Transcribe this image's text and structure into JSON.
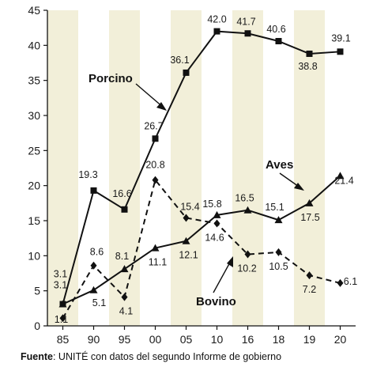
{
  "chart_data": {
    "type": "line",
    "categories": [
      "85",
      "90",
      "95",
      "00",
      "05",
      "10",
      "16",
      "18",
      "19",
      "20"
    ],
    "ylim": [
      0,
      45
    ],
    "yticks": [
      0,
      5,
      10,
      15,
      20,
      25,
      30,
      35,
      40,
      45
    ],
    "grid": "vertical bands",
    "series": [
      {
        "name": "Porcino",
        "values": [
          3.1,
          19.3,
          16.6,
          26.7,
          36.1,
          42.0,
          41.7,
          40.6,
          38.8,
          39.1
        ],
        "labels": [
          "3.1",
          "19.3",
          "16.6",
          "26.7",
          "36.1",
          "42.0",
          "41.7",
          "40.6",
          "38.8",
          "39.1"
        ],
        "color": "#111111",
        "line_style": "solid",
        "marker": "square"
      },
      {
        "name": "Aves",
        "values": [
          3.1,
          5.1,
          8.1,
          11.1,
          12.1,
          15.8,
          16.5,
          15.1,
          17.5,
          21.4
        ],
        "labels": [
          "3.1",
          "5.1",
          "8.1",
          "11.1",
          "12.1",
          "15.8",
          "16.5",
          "15.1",
          "17.5",
          "21.4"
        ],
        "color": "#111111",
        "line_style": "solid",
        "marker": "triangle"
      },
      {
        "name": "Bovino",
        "values": [
          1.1,
          8.6,
          4.1,
          20.8,
          15.4,
          14.6,
          10.2,
          10.5,
          7.2,
          6.1
        ],
        "labels": [
          "1.1",
          "8.6",
          "4.1",
          "20.8",
          "15.4",
          "14.6",
          "10.2",
          "10.5",
          "7.2",
          "6.1"
        ],
        "color": "#111111",
        "line_style": "dashed",
        "marker": "diamond"
      }
    ],
    "source_label": "Fuente",
    "source_text": ": UNITÉ con datos del segundo Informe de gobierno"
  },
  "colors": {
    "band": "#f2efd9",
    "ink": "#111111",
    "background": "#ffffff"
  }
}
